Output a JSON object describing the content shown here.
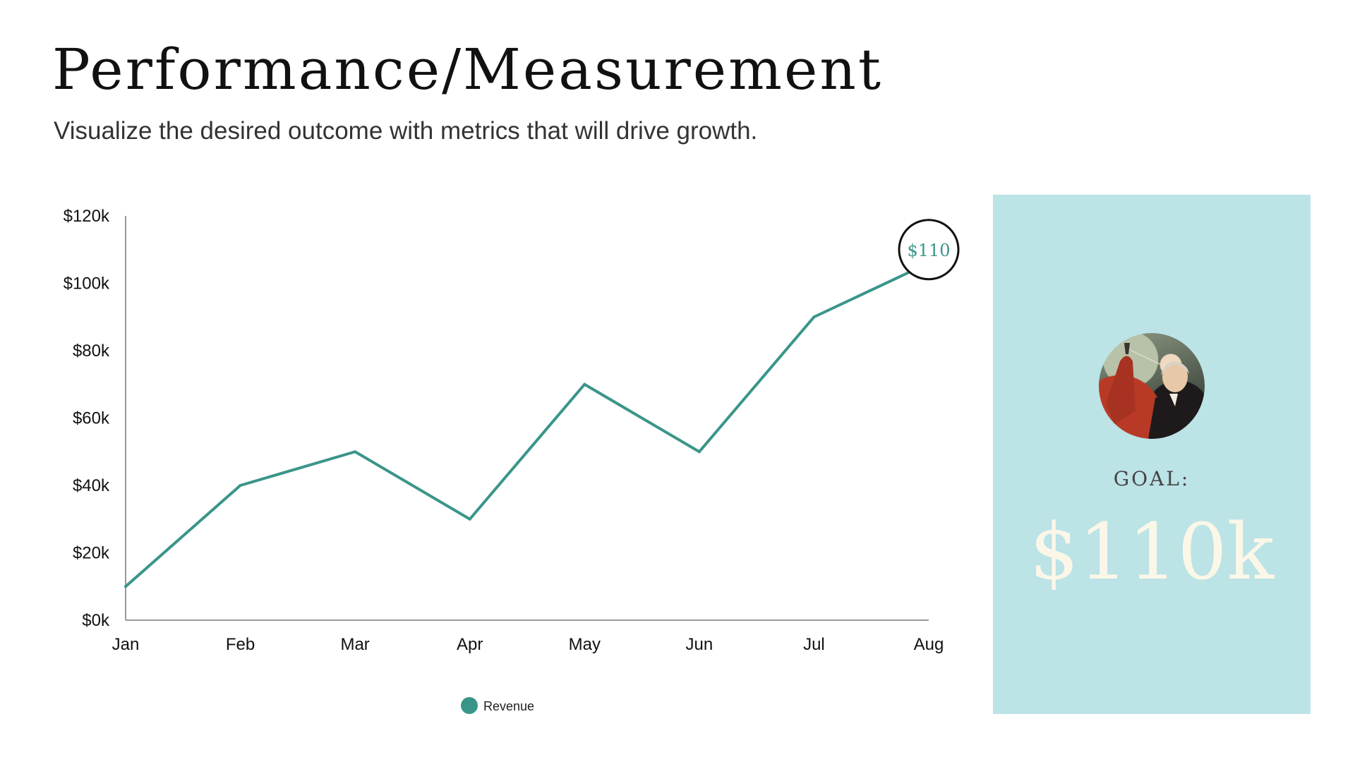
{
  "header": {
    "title": "Performance/Measurement",
    "subtitle": "Visualize the desired outcome with metrics that will drive growth."
  },
  "chart_data": {
    "type": "line",
    "categories": [
      "Jan",
      "Feb",
      "Mar",
      "Apr",
      "May",
      "Jun",
      "Jul",
      "Aug"
    ],
    "series": [
      {
        "name": "Revenue",
        "values": [
          10,
          40,
          50,
          30,
          70,
          50,
          90,
          106
        ],
        "color": "#3a9589"
      }
    ],
    "y_ticks": [
      "$0k",
      "$20k",
      "$40k",
      "$60k",
      "$80k",
      "$100k",
      "$120k"
    ],
    "ylim": [
      0,
      120
    ],
    "grid": false,
    "legend_position": "bottom",
    "annotation": {
      "category": "Aug",
      "value": 110,
      "label": "$110"
    }
  },
  "goal_panel": {
    "label": "GOAL:",
    "value": "$110k",
    "background": "#bce3e6",
    "value_color": "#fbf7e8"
  }
}
